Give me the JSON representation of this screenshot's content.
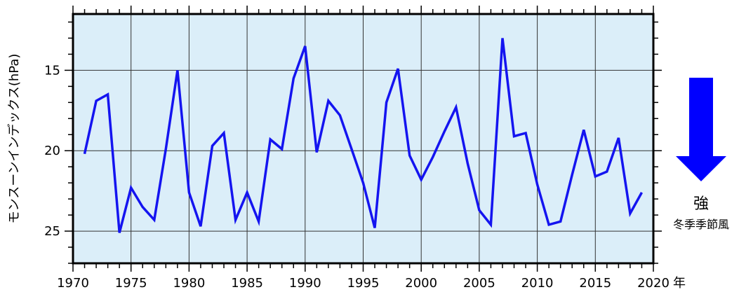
{
  "chart_data": {
    "type": "line",
    "title": "",
    "xlabel": "",
    "xunit": "年",
    "ylabel": "モンスーンインデックス(hPa)",
    "x_ticks": [
      1970,
      1975,
      1980,
      1985,
      1990,
      1995,
      2000,
      2005,
      2010,
      2015,
      2020
    ],
    "y_ticks": [
      15,
      20,
      25
    ],
    "xlim": [
      1970,
      2020
    ],
    "ylim": [
      27.0,
      11.5
    ],
    "y_inverted": true,
    "grid": true,
    "background_color": "#dbeef9",
    "line_color": "#1414f0",
    "series": [
      {
        "x": [
          1971,
          1972,
          1973,
          1974,
          1975,
          1976,
          1977,
          1978,
          1979,
          1980,
          1981,
          1982,
          1983,
          1984,
          1985,
          1986,
          1987,
          1988,
          1989,
          1990,
          1991,
          1992,
          1993,
          1994,
          1995,
          1996,
          1997,
          1998,
          1999,
          2000,
          2001,
          2002,
          2003,
          2004,
          2005,
          2006,
          2007,
          2008,
          2009,
          2010,
          2011,
          2012,
          2013,
          2014,
          2015,
          2016,
          2017,
          2018,
          2019
        ],
        "values": [
          20.2,
          16.9,
          16.5,
          25.1,
          22.3,
          23.5,
          24.3,
          19.9,
          15.0,
          22.6,
          24.7,
          19.7,
          18.9,
          24.3,
          22.6,
          24.4,
          19.3,
          19.9,
          15.5,
          13.5,
          20.1,
          16.9,
          17.8,
          19.9,
          22.0,
          24.8,
          17.0,
          14.9,
          20.3,
          21.8,
          20.4,
          18.8,
          17.3,
          20.8,
          23.7,
          24.6,
          13.0,
          19.1,
          18.9,
          22.1,
          24.6,
          24.4,
          21.5,
          18.7,
          21.6,
          21.3,
          19.2,
          23.9,
          22.6
        ]
      }
    ]
  },
  "indicator": {
    "strong_label": "強",
    "strong_caption": "冬季季節風",
    "arrow_color": "#0000ff"
  }
}
